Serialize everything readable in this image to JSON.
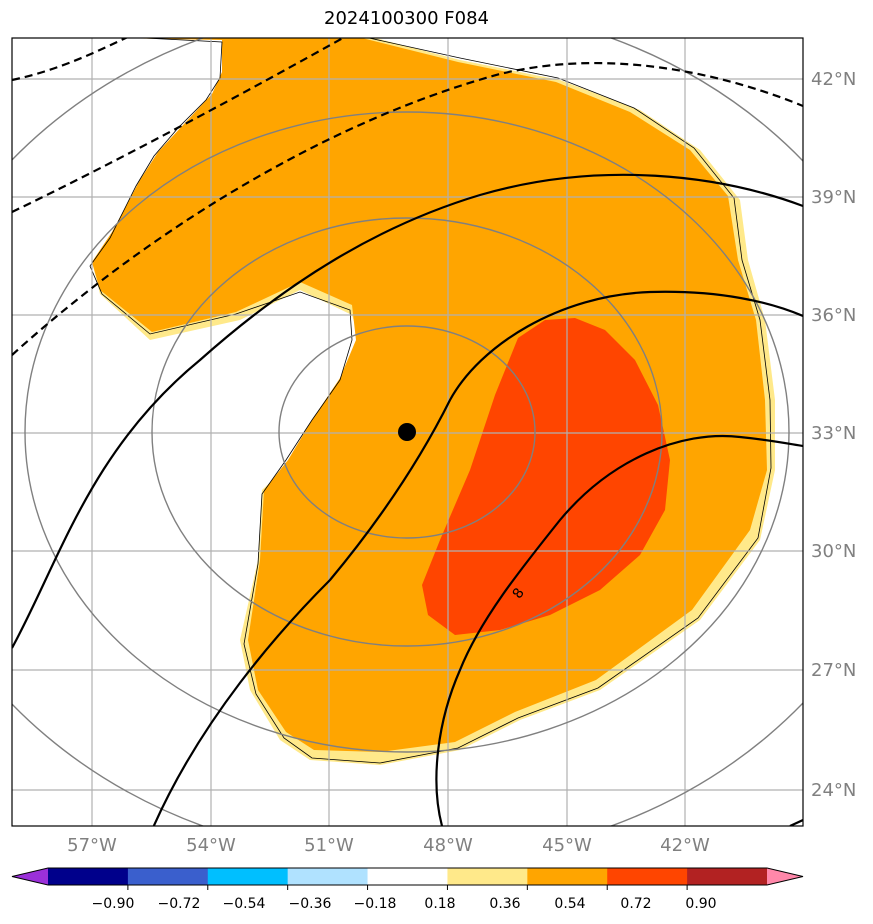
{
  "title": "2024100300 F084",
  "map": {
    "lat_labels": [
      "42°N",
      "39°N",
      "36°N",
      "33°N",
      "30°N",
      "27°N",
      "24°N"
    ],
    "lon_labels": [
      "57°W",
      "54°W",
      "51°W",
      "48°W",
      "45°W",
      "42°W"
    ],
    "center_marker": {
      "label": "storm-center"
    },
    "contour_label": "8",
    "colors": {
      "orange": "#ffa500",
      "red_orange": "#ff4500",
      "light_yellow": "#ffe98a",
      "range_ring": "#808080",
      "grid": "#b0b0b0"
    }
  },
  "colorbar": {
    "tick_labels": [
      "−0.90",
      "−0.72",
      "−0.54",
      "−0.36",
      "−0.18",
      "0.18",
      "0.36",
      "0.54",
      "0.72",
      "0.90"
    ],
    "colors": [
      "#9b30d9",
      "#00008b",
      "#3a5fcd",
      "#00bfff",
      "#b0e2ff",
      "#ffffff",
      "#ffe98a",
      "#ffa500",
      "#ff4500",
      "#b22222",
      "#ff88aa"
    ]
  }
}
